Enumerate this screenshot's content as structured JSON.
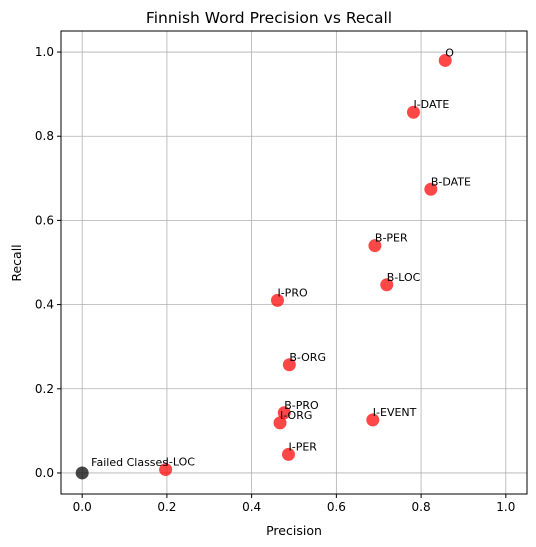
{
  "chart_data": {
    "type": "scatter",
    "title": "Finnish Word Precision vs Recall",
    "xlabel": "Precision",
    "ylabel": "Recall",
    "xlim": [
      -0.05,
      1.05
    ],
    "ylim": [
      -0.05,
      1.05
    ],
    "xticks": [
      "0.0",
      "0.2",
      "0.4",
      "0.6",
      "0.8",
      "1.0"
    ],
    "yticks": [
      "0.0",
      "0.2",
      "0.4",
      "0.6",
      "0.8",
      "1.0"
    ],
    "grid": true,
    "colors": {
      "point": "#ff0000",
      "failed": "#000000"
    },
    "points": [
      {
        "label": "O",
        "x": 0.857,
        "y": 0.98
      },
      {
        "label": "I-DATE",
        "x": 0.782,
        "y": 0.857
      },
      {
        "label": "B-DATE",
        "x": 0.823,
        "y": 0.674
      },
      {
        "label": "B-PER",
        "x": 0.691,
        "y": 0.54
      },
      {
        "label": "B-LOC",
        "x": 0.719,
        "y": 0.447
      },
      {
        "label": "I-PRO",
        "x": 0.461,
        "y": 0.41
      },
      {
        "label": "B-ORG",
        "x": 0.489,
        "y": 0.257
      },
      {
        "label": "B-PRO",
        "x": 0.477,
        "y": 0.143
      },
      {
        "label": "I-ORG",
        "x": 0.467,
        "y": 0.119
      },
      {
        "label": "I-EVENT",
        "x": 0.686,
        "y": 0.126
      },
      {
        "label": "I-PER",
        "x": 0.487,
        "y": 0.044
      },
      {
        "label": "I-LOC",
        "x": 0.197,
        "y": 0.008
      }
    ],
    "failed_point": {
      "label": "Failed Classes",
      "x": 0.0,
      "y": 0.0
    }
  }
}
